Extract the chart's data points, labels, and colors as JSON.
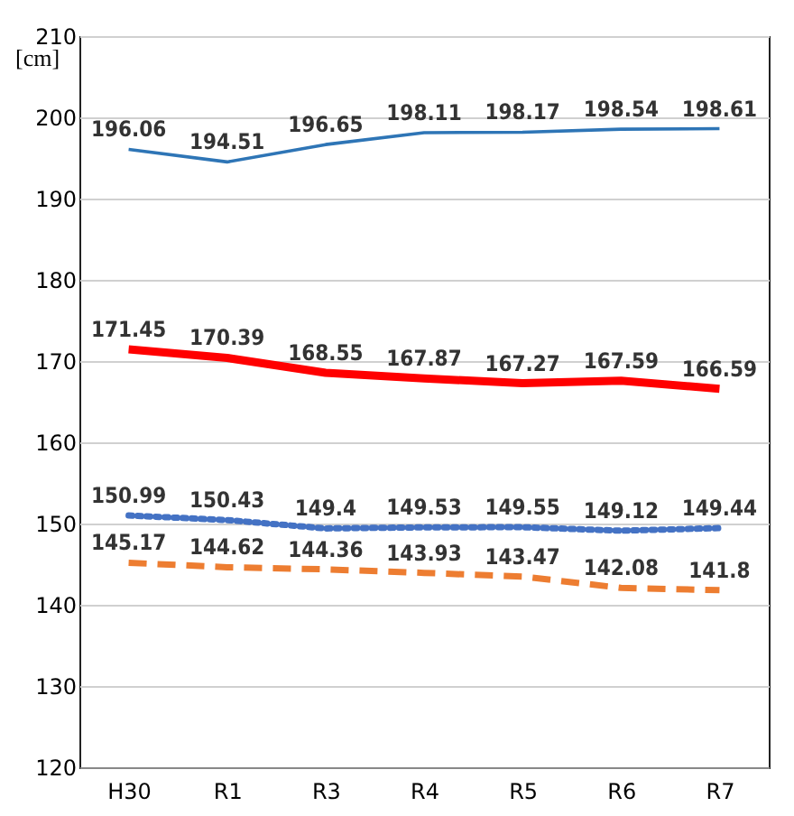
{
  "chart_data": {
    "type": "line",
    "ylabel": "[cm]",
    "categories": [
      "H30",
      "R1",
      "R3",
      "R4",
      "R5",
      "R6",
      "R7"
    ],
    "ylim": [
      120,
      210
    ],
    "yticks": [
      120,
      130,
      140,
      150,
      160,
      170,
      180,
      190,
      200,
      210
    ],
    "grid": "y",
    "data_labels": true,
    "marker": "none",
    "series": [
      {
        "color": "#2e75b6",
        "line_style": "solid",
        "values": [
          196.06,
          194.51,
          196.65,
          198.11,
          198.17,
          198.54,
          198.61
        ]
      },
      {
        "color": "#ff0000",
        "line_style": "solid",
        "values": [
          171.45,
          170.39,
          168.55,
          167.87,
          167.27,
          167.59,
          166.59
        ]
      },
      {
        "color": "#4472c4",
        "line_style": "dotted",
        "values": [
          150.99,
          150.43,
          149.4,
          149.53,
          149.55,
          149.12,
          149.44
        ]
      },
      {
        "color": "#ed7d31",
        "line_style": "dashed",
        "values": [
          145.17,
          144.62,
          144.36,
          143.93,
          143.47,
          142.08,
          141.8
        ]
      }
    ]
  }
}
